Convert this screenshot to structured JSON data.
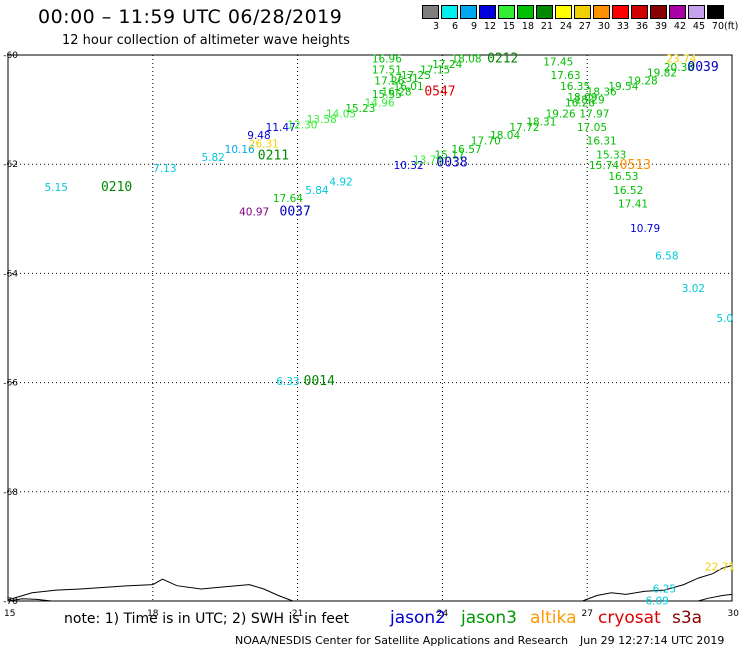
{
  "header": {
    "title": "00:00 – 11:59 UTC 06/28/2019",
    "subtitle": "12 hour collection of altimeter wave heights"
  },
  "colorbar": {
    "unit": "(ft)",
    "bins": [
      {
        "label": "3",
        "color": "#7f7f7f"
      },
      {
        "label": "6",
        "color": "#00f0f0"
      },
      {
        "label": "9",
        "color": "#00a8f0"
      },
      {
        "label": "12",
        "color": "#0000e0"
      },
      {
        "label": "15",
        "color": "#33ee33"
      },
      {
        "label": "18",
        "color": "#00c000"
      },
      {
        "label": "21",
        "color": "#008800"
      },
      {
        "label": "24",
        "color": "#ffff00"
      },
      {
        "label": "27",
        "color": "#f0d000"
      },
      {
        "label": "30",
        "color": "#ff9000"
      },
      {
        "label": "33",
        "color": "#ff0000"
      },
      {
        "label": "36",
        "color": "#d00000"
      },
      {
        "label": "39",
        "color": "#880000"
      },
      {
        "label": "42",
        "color": "#aa00aa"
      },
      {
        "label": "45",
        "color": "#c8a0f0"
      },
      {
        "label": "70",
        "color": "#000000"
      }
    ]
  },
  "axes": {
    "lon_range": [
      15,
      30
    ],
    "lat_range": [
      -70,
      -60
    ],
    "x_ticks": [
      "15",
      "18",
      "21",
      "24",
      "27",
      "30"
    ],
    "y_ticks": [
      "-60",
      "-62",
      "-64",
      "-66",
      "-68",
      "-70"
    ],
    "grid": "dotted"
  },
  "observations": [
    {
      "lon": 16.0,
      "lat": -62.4,
      "text": "5.15",
      "color": "#00c8d8"
    },
    {
      "lon": 17.25,
      "lat": -62.4,
      "text": "0210",
      "color": "#008800"
    },
    {
      "lon": 18.25,
      "lat": -62.05,
      "text": "7.13",
      "color": "#00c8d8"
    },
    {
      "lon": 19.25,
      "lat": -61.85,
      "text": "5.82",
      "color": "#00c8d8"
    },
    {
      "lon": 19.8,
      "lat": -61.7,
      "text": "10.16",
      "color": "#00a8f0"
    },
    {
      "lon": 20.3,
      "lat": -61.6,
      "text": "26.31",
      "color": "#f0d000"
    },
    {
      "lon": 20.2,
      "lat": -61.45,
      "text": "9.48",
      "color": "#0000e0"
    },
    {
      "lon": 20.5,
      "lat": -61.82,
      "text": "0211",
      "color": "#008800"
    },
    {
      "lon": 20.65,
      "lat": -61.3,
      "text": "11.47",
      "color": "#0000e0"
    },
    {
      "lon": 20.1,
      "lat": -62.85,
      "text": "40.97",
      "color": "#880088"
    },
    {
      "lon": 20.95,
      "lat": -62.85,
      "text": "0037",
      "color": "#0000c0"
    },
    {
      "lon": 20.8,
      "lat": -62.6,
      "text": "17.64",
      "color": "#00c000"
    },
    {
      "lon": 21.4,
      "lat": -62.45,
      "text": "5.84",
      "color": "#00c8d8"
    },
    {
      "lon": 21.9,
      "lat": -62.3,
      "text": "4.92",
      "color": "#00c8d8"
    },
    {
      "lon": 21.1,
      "lat": -61.25,
      "text": "12.30",
      "color": "#33ee33"
    },
    {
      "lon": 21.5,
      "lat": -61.15,
      "text": "13.58",
      "color": "#33ee33"
    },
    {
      "lon": 21.9,
      "lat": -61.05,
      "text": "14.05",
      "color": "#33ee33"
    },
    {
      "lon": 22.3,
      "lat": -60.95,
      "text": "15.23",
      "color": "#00c000"
    },
    {
      "lon": 22.7,
      "lat": -60.85,
      "text": "14.96",
      "color": "#33ee33"
    },
    {
      "lon": 22.85,
      "lat": -60.7,
      "text": "15.55",
      "color": "#00c000"
    },
    {
      "lon": 23.05,
      "lat": -60.65,
      "text": "16.28",
      "color": "#00c000"
    },
    {
      "lon": 22.85,
      "lat": -60.05,
      "text": "16.96",
      "color": "#00c000"
    },
    {
      "lon": 22.85,
      "lat": -60.25,
      "text": "17.51",
      "color": "#00c000"
    },
    {
      "lon": 22.9,
      "lat": -60.45,
      "text": "17.26",
      "color": "#00c000"
    },
    {
      "lon": 23.2,
      "lat": -60.4,
      "text": "17.31",
      "color": "#00c000"
    },
    {
      "lon": 23.3,
      "lat": -60.55,
      "text": "16.01",
      "color": "#00c000"
    },
    {
      "lon": 23.45,
      "lat": -60.35,
      "text": "17.25",
      "color": "#00c000"
    },
    {
      "lon": 23.85,
      "lat": -60.25,
      "text": "17.15",
      "color": "#00c000"
    },
    {
      "lon": 23.95,
      "lat": -60.65,
      "text": "0547",
      "color": "#e00000"
    },
    {
      "lon": 24.1,
      "lat": -60.15,
      "text": "17.24",
      "color": "#00c000"
    },
    {
      "lon": 24.5,
      "lat": -60.05,
      "text": "18.08",
      "color": "#00c000"
    },
    {
      "lon": 25.25,
      "lat": -60.05,
      "text": "0212",
      "color": "#008800"
    },
    {
      "lon": 23.3,
      "lat": -62.0,
      "text": "10.32",
      "color": "#0000e0"
    },
    {
      "lon": 23.7,
      "lat": -61.9,
      "text": "13.73",
      "color": "#33ee33"
    },
    {
      "lon": 24.15,
      "lat": -61.8,
      "text": "15.17",
      "color": "#00c000"
    },
    {
      "lon": 24.2,
      "lat": -61.95,
      "text": "0038",
      "color": "#0000c0"
    },
    {
      "lon": 24.5,
      "lat": -61.7,
      "text": "16.57",
      "color": "#00c000"
    },
    {
      "lon": 24.9,
      "lat": -61.55,
      "text": "17.70",
      "color": "#00c000"
    },
    {
      "lon": 25.3,
      "lat": -61.45,
      "text": "18.04",
      "color": "#00c000"
    },
    {
      "lon": 25.7,
      "lat": -61.3,
      "text": "17.72",
      "color": "#00c000"
    },
    {
      "lon": 26.05,
      "lat": -61.2,
      "text": "18.31",
      "color": "#00c000"
    },
    {
      "lon": 26.45,
      "lat": -61.05,
      "text": "19.26",
      "color": "#00c000"
    },
    {
      "lon": 26.4,
      "lat": -60.1,
      "text": "17.45",
      "color": "#00c000"
    },
    {
      "lon": 26.55,
      "lat": -60.35,
      "text": "17.63",
      "color": "#00c000"
    },
    {
      "lon": 26.75,
      "lat": -60.55,
      "text": "16.35",
      "color": "#00c000"
    },
    {
      "lon": 26.9,
      "lat": -60.75,
      "text": "18.09",
      "color": "#00c000"
    },
    {
      "lon": 26.85,
      "lat": -60.85,
      "text": "16.26",
      "color": "#00c000"
    },
    {
      "lon": 27.05,
      "lat": -60.8,
      "text": "18.29",
      "color": "#00c000"
    },
    {
      "lon": 27.15,
      "lat": -61.05,
      "text": "17.97",
      "color": "#00c000"
    },
    {
      "lon": 27.3,
      "lat": -60.65,
      "text": "18.36",
      "color": "#00c000"
    },
    {
      "lon": 27.75,
      "lat": -60.55,
      "text": "19.54",
      "color": "#00c000"
    },
    {
      "lon": 28.15,
      "lat": -60.45,
      "text": "19.28",
      "color": "#00c000"
    },
    {
      "lon": 28.55,
      "lat": -60.3,
      "text": "19.82",
      "color": "#00c000"
    },
    {
      "lon": 28.9,
      "lat": -60.2,
      "text": "20.38",
      "color": "#00c000"
    },
    {
      "lon": 28.95,
      "lat": -60.05,
      "text": "23.74",
      "color": "#f0d000"
    },
    {
      "lon": 29.4,
      "lat": -60.2,
      "text": "0039",
      "color": "#0000c0"
    },
    {
      "lon": 27.1,
      "lat": -61.3,
      "text": "17.05",
      "color": "#00c000"
    },
    {
      "lon": 27.3,
      "lat": -61.55,
      "text": "16.31",
      "color": "#00c000"
    },
    {
      "lon": 27.5,
      "lat": -61.8,
      "text": "15.33",
      "color": "#00c000"
    },
    {
      "lon": 27.35,
      "lat": -62.0,
      "text": "15.74",
      "color": "#00c000"
    },
    {
      "lon": 28.0,
      "lat": -62.0,
      "text": "0513",
      "color": "#ff9000"
    },
    {
      "lon": 27.75,
      "lat": -62.2,
      "text": "16.53",
      "color": "#00c000"
    },
    {
      "lon": 27.85,
      "lat": -62.45,
      "text": "16.52",
      "color": "#00c000"
    },
    {
      "lon": 27.95,
      "lat": -62.7,
      "text": "17.41",
      "color": "#00c000"
    },
    {
      "lon": 28.2,
      "lat": -63.15,
      "text": "10.79",
      "color": "#0000e0"
    },
    {
      "lon": 28.65,
      "lat": -63.65,
      "text": "6.58",
      "color": "#00c8d8"
    },
    {
      "lon": 29.2,
      "lat": -64.25,
      "text": "3.02",
      "color": "#00c8d8"
    },
    {
      "lon": 29.85,
      "lat": -64.8,
      "text": "5.0",
      "color": "#00c8d8"
    },
    {
      "lon": 20.8,
      "lat": -65.95,
      "text": "6.33",
      "color": "#00c8d8"
    },
    {
      "lon": 21.45,
      "lat": -65.95,
      "text": "0014",
      "color": "#008800"
    },
    {
      "lon": 29.75,
      "lat": -69.35,
      "text": "22.71",
      "color": "#f0d000"
    },
    {
      "lon": 28.6,
      "lat": -69.75,
      "text": "6.25",
      "color": "#00c8d8"
    },
    {
      "lon": 28.45,
      "lat": -69.97,
      "text": "6.09",
      "color": "#00c8d8"
    }
  ],
  "coastline": [
    [
      [
        15.0,
        -69.98
      ],
      [
        15.5,
        -69.85
      ],
      [
        16.0,
        -69.8
      ],
      [
        16.5,
        -69.78
      ],
      [
        17.0,
        -69.75
      ],
      [
        17.5,
        -69.72
      ],
      [
        18.0,
        -69.7
      ],
      [
        18.2,
        -69.6
      ],
      [
        18.5,
        -69.72
      ],
      [
        19.0,
        -69.78
      ],
      [
        19.5,
        -69.74
      ],
      [
        20.0,
        -69.7
      ],
      [
        20.3,
        -69.78
      ],
      [
        20.6,
        -69.9
      ],
      [
        20.9,
        -70.0
      ]
    ],
    [
      [
        26.9,
        -70.0
      ],
      [
        27.2,
        -69.9
      ],
      [
        27.5,
        -69.85
      ],
      [
        27.8,
        -69.88
      ],
      [
        28.2,
        -69.82
      ],
      [
        28.6,
        -69.8
      ],
      [
        29.0,
        -69.7
      ],
      [
        29.3,
        -69.58
      ],
      [
        29.6,
        -69.5
      ],
      [
        29.8,
        -69.4
      ],
      [
        30.0,
        -69.35
      ]
    ],
    [
      [
        15.0,
        -70.0
      ],
      [
        15.3,
        -69.96
      ],
      [
        15.6,
        -69.97
      ],
      [
        15.9,
        -70.0
      ]
    ],
    [
      [
        29.3,
        -70.0
      ],
      [
        29.5,
        -69.95
      ],
      [
        29.8,
        -69.9
      ],
      [
        30.0,
        -69.88
      ]
    ]
  ],
  "footer": {
    "note": "note: 1) Time is in UTC; 2) SWH is in feet",
    "satellites": [
      {
        "name": "jason2",
        "color": "#0000cc"
      },
      {
        "name": "jason3",
        "color": "#009900"
      },
      {
        "name": "altika",
        "color": "#ff9900"
      },
      {
        "name": "cryosat",
        "color": "#dd0000"
      },
      {
        "name": "s3a",
        "color": "#880000"
      }
    ],
    "credit": "NOAA/NESDIS Center for Satellite Applications and Research",
    "timestamp": "Jun 29 12:27:14 UTC 2019"
  }
}
